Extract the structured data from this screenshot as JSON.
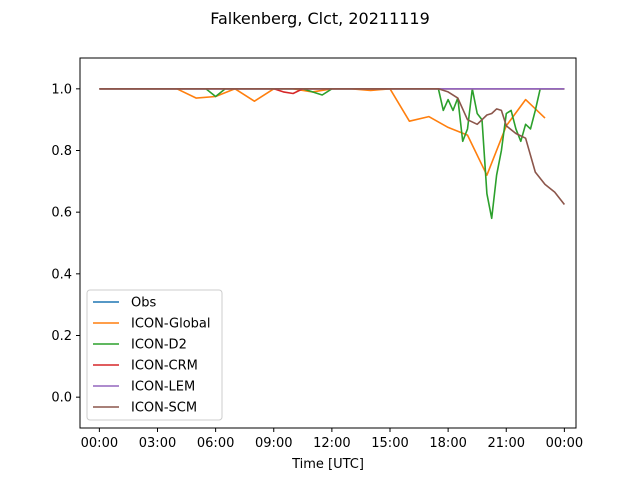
{
  "chart_data": {
    "type": "line",
    "title": "Falkenberg, Clct, 20211119",
    "xlabel": "Time [UTC]",
    "ylabel": "",
    "xlim": [
      -1.0,
      24.6
    ],
    "ylim": [
      -0.1,
      1.1
    ],
    "xticks": [
      0,
      3,
      6,
      9,
      12,
      15,
      18,
      21,
      24
    ],
    "xtick_labels": [
      "00:00",
      "03:00",
      "06:00",
      "09:00",
      "12:00",
      "15:00",
      "18:00",
      "21:00",
      "00:00"
    ],
    "yticks": [
      0.0,
      0.2,
      0.4,
      0.6,
      0.8,
      1.0
    ],
    "ytick_labels": [
      "0.0",
      "0.2",
      "0.4",
      "0.6",
      "0.8",
      "1.0"
    ],
    "grid": false,
    "legend_position": "lower-left",
    "series": [
      {
        "name": "Obs",
        "color": "#1f77b4",
        "x": [
          0,
          24
        ],
        "y": [
          1.0,
          1.0
        ]
      },
      {
        "name": "ICON-Global",
        "color": "#ff7f0e",
        "x": [
          0,
          1,
          2,
          3,
          4,
          5,
          6,
          7,
          8,
          9,
          10,
          11,
          12,
          13,
          14,
          15,
          16,
          17,
          18,
          19,
          20,
          21,
          22,
          23
        ],
        "y": [
          1.0,
          1.0,
          1.0,
          1.0,
          1.0,
          0.97,
          0.975,
          1.0,
          0.96,
          1.0,
          1.0,
          0.99,
          1.0,
          1.0,
          0.995,
          1.0,
          0.895,
          0.91,
          0.875,
          0.85,
          0.72,
          0.88,
          0.965,
          0.905
        ]
      },
      {
        "name": "ICON-D2",
        "color": "#2ca02c",
        "x": [
          0,
          5.5,
          6.0,
          6.5,
          10.5,
          11.5,
          12.0,
          17.5,
          17.75,
          18.0,
          18.25,
          18.5,
          18.75,
          19.0,
          19.25,
          19.5,
          19.75,
          20.0,
          20.25,
          20.5,
          20.75,
          21.0,
          21.25,
          21.5,
          21.75,
          22.0,
          22.25,
          22.5,
          22.75,
          23.0,
          23.25,
          24.0
        ],
        "y": [
          1.0,
          1.0,
          0.975,
          1.0,
          1.0,
          0.98,
          1.0,
          1.0,
          0.93,
          0.965,
          0.93,
          0.97,
          0.83,
          0.87,
          1.0,
          0.92,
          0.9,
          0.66,
          0.58,
          0.72,
          0.8,
          0.92,
          0.93,
          0.87,
          0.83,
          0.885,
          0.87,
          0.93,
          1.0,
          1.0,
          1.0,
          1.0
        ]
      },
      {
        "name": "ICON-CRM",
        "color": "#d62728",
        "x": [
          0,
          9,
          9.5,
          10,
          10.5,
          11,
          24
        ],
        "y": [
          1.0,
          1.0,
          0.99,
          0.985,
          1.0,
          1.0,
          1.0
        ]
      },
      {
        "name": "ICON-LEM",
        "color": "#9467bd",
        "x": [
          0,
          24
        ],
        "y": [
          1.0,
          1.0
        ]
      },
      {
        "name": "ICON-SCM",
        "color": "#8c564b",
        "x": [
          0,
          17.5,
          18,
          18.5,
          19,
          19.5,
          20,
          20.25,
          20.5,
          20.75,
          21,
          21.5,
          22,
          22.5,
          23,
          23.5,
          24
        ],
        "y": [
          1.0,
          1.0,
          0.99,
          0.97,
          0.9,
          0.885,
          0.915,
          0.92,
          0.935,
          0.93,
          0.88,
          0.855,
          0.84,
          0.73,
          0.69,
          0.665,
          0.625
        ]
      }
    ]
  }
}
